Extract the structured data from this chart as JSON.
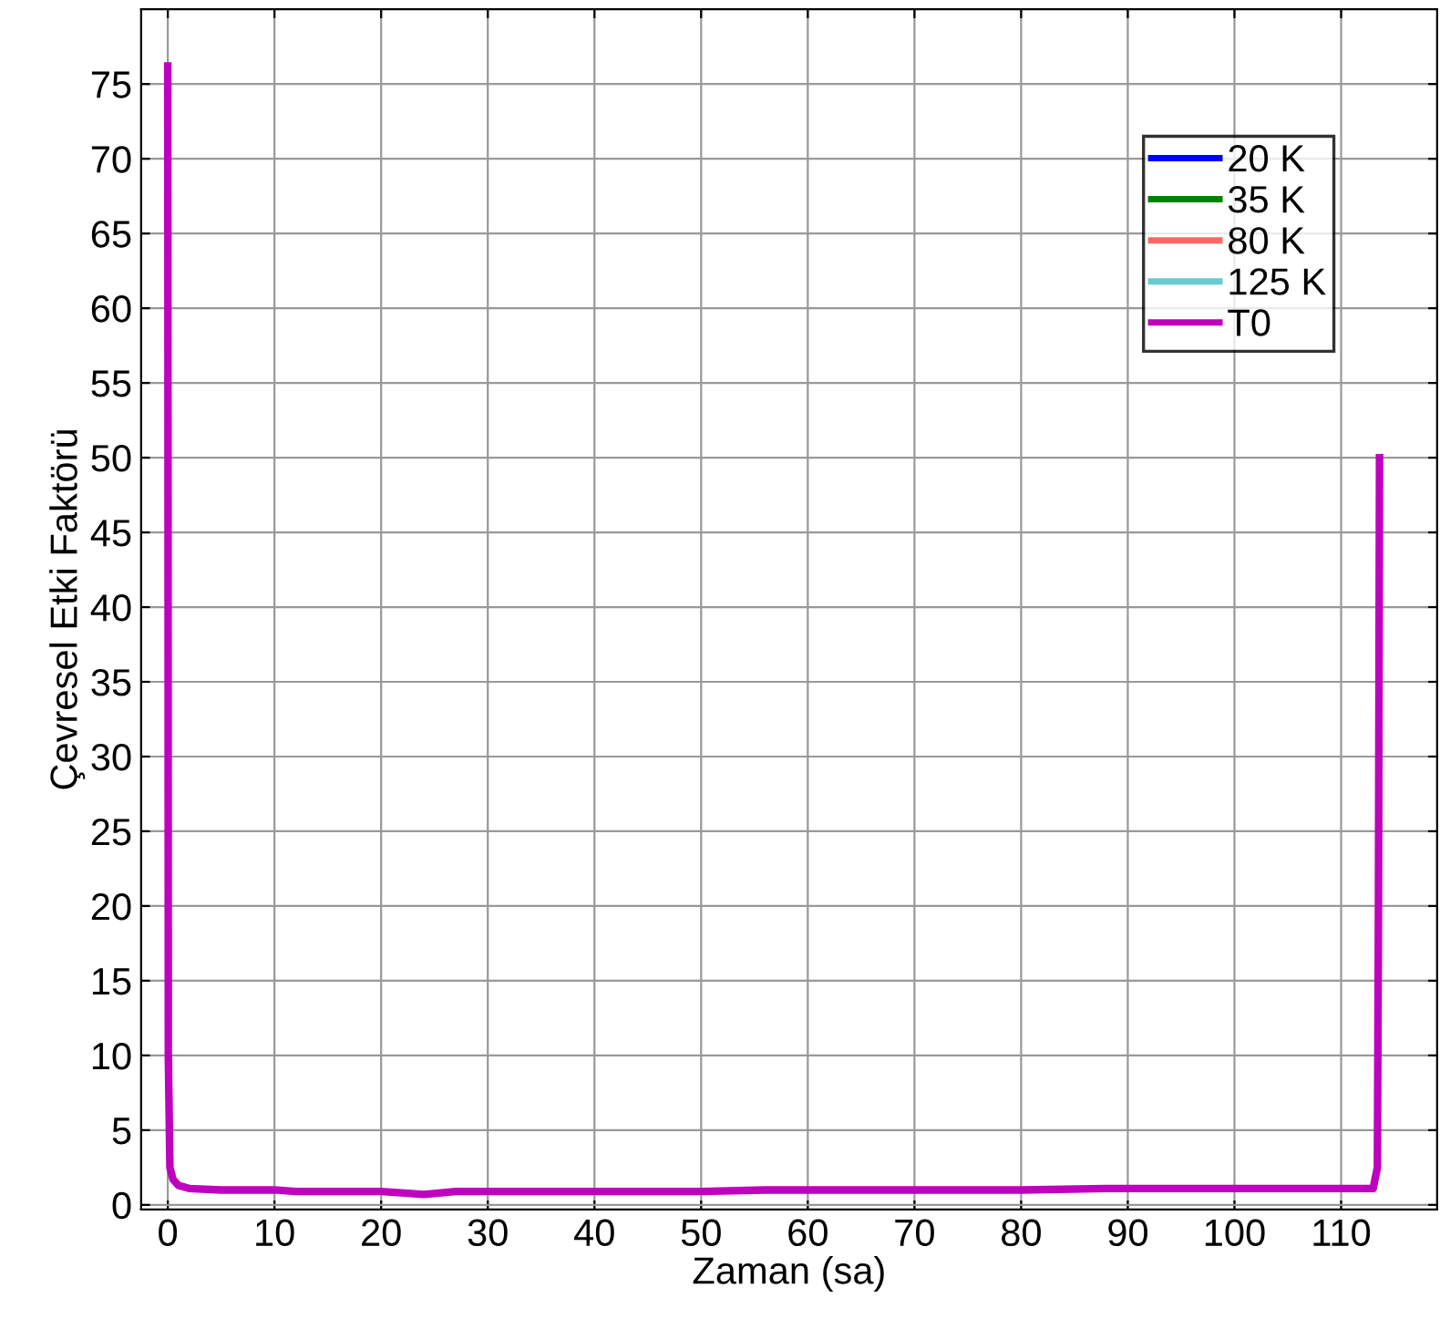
{
  "chart_data": {
    "type": "line",
    "xlabel": "Zaman (sa)",
    "ylabel": "Çevresel Etki Faktörü",
    "xlim": [
      -2.5,
      119
    ],
    "ylim": [
      -0.3,
      80
    ],
    "xticks": [
      0,
      10,
      20,
      30,
      40,
      50,
      60,
      70,
      80,
      90,
      100,
      110
    ],
    "yticks": [
      0,
      5,
      10,
      15,
      20,
      25,
      30,
      35,
      40,
      45,
      50,
      55,
      60,
      65,
      70,
      75
    ],
    "grid": true,
    "legend": "top right",
    "series": [
      {
        "name": "20 K",
        "color": "#0000ff"
      },
      {
        "name": "35 K",
        "color": "#008000"
      },
      {
        "name": "80 K",
        "color": "#ff6666"
      },
      {
        "name": "125 K",
        "color": "#66cccc"
      },
      {
        "name": "T0",
        "color": "#bf00bf",
        "x": [
          0,
          0.05,
          0.2,
          0.5,
          1,
          2,
          5,
          10,
          12,
          20,
          24,
          27,
          30,
          40,
          50,
          56,
          60,
          70,
          80,
          88,
          90,
          100,
          110,
          113,
          113.4,
          113.5,
          113.6
        ],
        "values": [
          76.2,
          10,
          2.5,
          1.7,
          1.3,
          1.1,
          1.0,
          1.0,
          0.9,
          0.9,
          0.7,
          0.9,
          0.9,
          0.9,
          0.9,
          1.0,
          1.0,
          1.0,
          1.0,
          1.1,
          1.1,
          1.1,
          1.1,
          1.1,
          2.5,
          20,
          50
        ]
      }
    ]
  }
}
